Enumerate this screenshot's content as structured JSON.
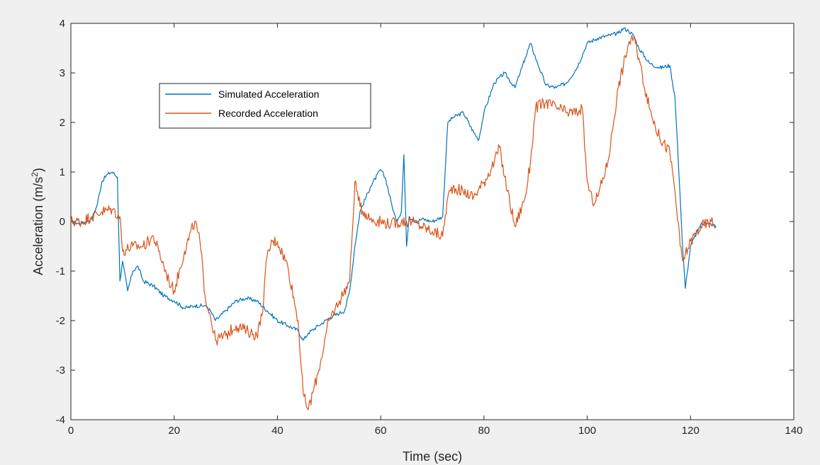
{
  "chart_data": {
    "type": "line",
    "title": "",
    "xlabel": "Time (sec)",
    "ylabel": "Acceleration (m/s",
    "ylabel_superscript": "2",
    "ylabel_suffix": ")",
    "xlim": [
      0,
      140
    ],
    "ylim": [
      -4,
      4
    ],
    "xticks": [
      0,
      20,
      40,
      60,
      80,
      100,
      120,
      140
    ],
    "yticks": [
      4,
      3,
      2,
      1,
      0,
      -1,
      -2,
      -3,
      -4
    ],
    "grid": false,
    "legend_position": "upper-left",
    "colors": {
      "background": "#f0f0f0",
      "axes": "#ffffff",
      "axis_line": "#262626"
    },
    "series": [
      {
        "name": "Simulated Acceleration",
        "color": "#0072bd",
        "noise": 0.04,
        "x": [
          0,
          2,
          4,
          5,
          6,
          7,
          8,
          9,
          9.5,
          10,
          11,
          12,
          13,
          14,
          16,
          18,
          20,
          22,
          24,
          26,
          27,
          28,
          30,
          32,
          34,
          36,
          38,
          40,
          42,
          44,
          45,
          46,
          48,
          50,
          52,
          53,
          54,
          55,
          56,
          58,
          60,
          61,
          62,
          63,
          64,
          64.5,
          65,
          65.5,
          66,
          67,
          68,
          70,
          72,
          73,
          74,
          76,
          78,
          79,
          80,
          82,
          84,
          86,
          87,
          88,
          89,
          90,
          92,
          94,
          96,
          98,
          100,
          102,
          104,
          106,
          107,
          108,
          109,
          110,
          112,
          114,
          116,
          117,
          118,
          118.5,
          119,
          120,
          122,
          124,
          125
        ],
        "y": [
          0.0,
          -0.05,
          0.05,
          0.3,
          0.8,
          0.95,
          1.0,
          0.9,
          -1.2,
          -0.8,
          -1.4,
          -1.0,
          -0.9,
          -1.2,
          -1.3,
          -1.5,
          -1.6,
          -1.75,
          -1.7,
          -1.7,
          -1.8,
          -2.0,
          -1.8,
          -1.6,
          -1.55,
          -1.6,
          -1.8,
          -2.0,
          -2.1,
          -2.2,
          -2.4,
          -2.25,
          -2.1,
          -1.95,
          -1.85,
          -1.8,
          -1.4,
          -0.5,
          0.2,
          0.7,
          1.05,
          0.85,
          0.4,
          0.0,
          0.2,
          1.35,
          -0.5,
          0.1,
          0.05,
          0.0,
          0.05,
          0.0,
          0.1,
          2.0,
          2.1,
          2.2,
          1.8,
          1.65,
          2.2,
          2.8,
          3.0,
          2.7,
          3.0,
          3.3,
          3.6,
          3.3,
          2.75,
          2.7,
          2.8,
          3.1,
          3.6,
          3.7,
          3.75,
          3.8,
          3.9,
          3.85,
          3.75,
          3.5,
          3.2,
          3.1,
          3.15,
          2.5,
          0.5,
          -0.6,
          -1.35,
          -0.5,
          -0.05,
          -0.05,
          -0.1
        ]
      },
      {
        "name": "Recorded Acceleration",
        "color": "#d95319",
        "noise": 0.12,
        "x": [
          0,
          2,
          4,
          6,
          8,
          9.5,
          10,
          12,
          14,
          16,
          17,
          18,
          19,
          20,
          22,
          24,
          25,
          26,
          27,
          28,
          30,
          32,
          34,
          36,
          37,
          38,
          39,
          40,
          42,
          44,
          45,
          46,
          48,
          50,
          52,
          54,
          55,
          56,
          58,
          60,
          62,
          64,
          66,
          68,
          70,
          72,
          73,
          74,
          76,
          78,
          80,
          82,
          83,
          84,
          86,
          88,
          89,
          90,
          92,
          94,
          96,
          98,
          99,
          100,
          101,
          102,
          104,
          106,
          108,
          109,
          110,
          112,
          114,
          116,
          117,
          118,
          118.5,
          120,
          122,
          124,
          125
        ],
        "y": [
          0.0,
          0.0,
          0.1,
          0.2,
          0.25,
          0.1,
          -0.6,
          -0.5,
          -0.5,
          -0.3,
          -0.6,
          -0.9,
          -1.2,
          -1.4,
          -0.6,
          0.0,
          -0.4,
          -1.5,
          -1.9,
          -2.4,
          -2.3,
          -2.1,
          -2.2,
          -2.3,
          -1.9,
          -0.7,
          -0.4,
          -0.4,
          -0.9,
          -2.0,
          -3.5,
          -3.8,
          -3.0,
          -2.0,
          -1.6,
          -1.2,
          0.8,
          0.3,
          0.05,
          0.0,
          -0.05,
          0.0,
          0.0,
          -0.1,
          -0.2,
          -0.3,
          0.5,
          0.7,
          0.6,
          0.5,
          0.8,
          1.2,
          1.5,
          0.9,
          -0.1,
          0.5,
          1.2,
          2.3,
          2.4,
          2.3,
          2.2,
          2.2,
          2.3,
          0.8,
          0.4,
          0.5,
          1.2,
          2.7,
          3.6,
          3.7,
          3.3,
          2.3,
          1.7,
          1.4,
          0.6,
          -0.5,
          -0.8,
          -0.4,
          -0.1,
          0.0,
          -0.1
        ]
      }
    ]
  }
}
